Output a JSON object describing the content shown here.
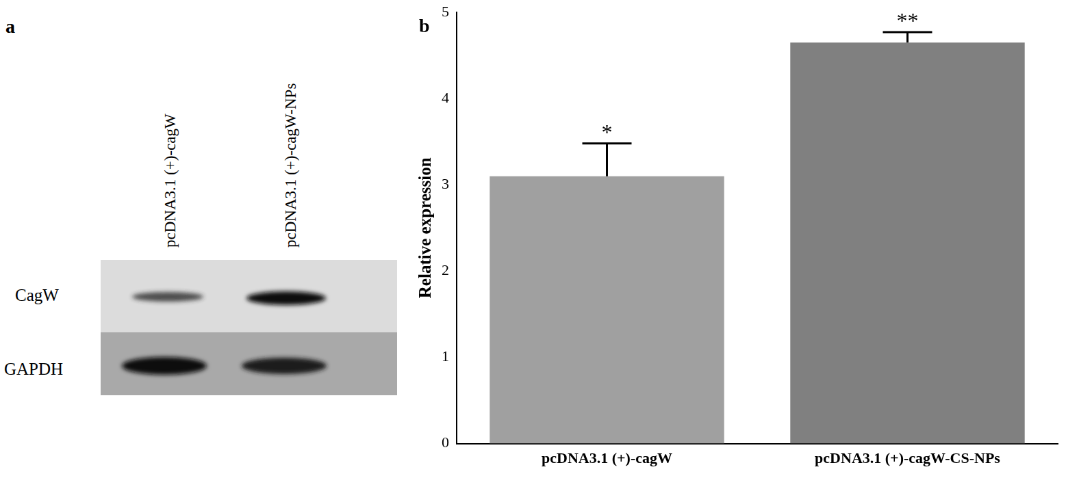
{
  "panel_labels": [
    "a",
    "b"
  ],
  "blot": {
    "lanes": [
      "pcDNA3.1 (+)-cagW",
      "pcDNA3.1 (+)-cagW-NPs"
    ],
    "rows": [
      "CagW",
      "GAPDH"
    ]
  },
  "chart_data": {
    "type": "bar",
    "categories": [
      "pcDNA3.1 (+)-cagW",
      "pcDNA3.1 (+)-cagW-CS-NPs"
    ],
    "values": [
      3.1,
      4.65
    ],
    "errors": [
      0.38,
      0.12
    ],
    "annotations": [
      "*",
      "**"
    ],
    "colors": [
      "#a0a0a0",
      "#808080"
    ],
    "y_label": "Relative expression",
    "ylim": [
      0,
      5
    ],
    "yticks": [
      0,
      1,
      2,
      3,
      4,
      5
    ],
    "grid": false
  }
}
